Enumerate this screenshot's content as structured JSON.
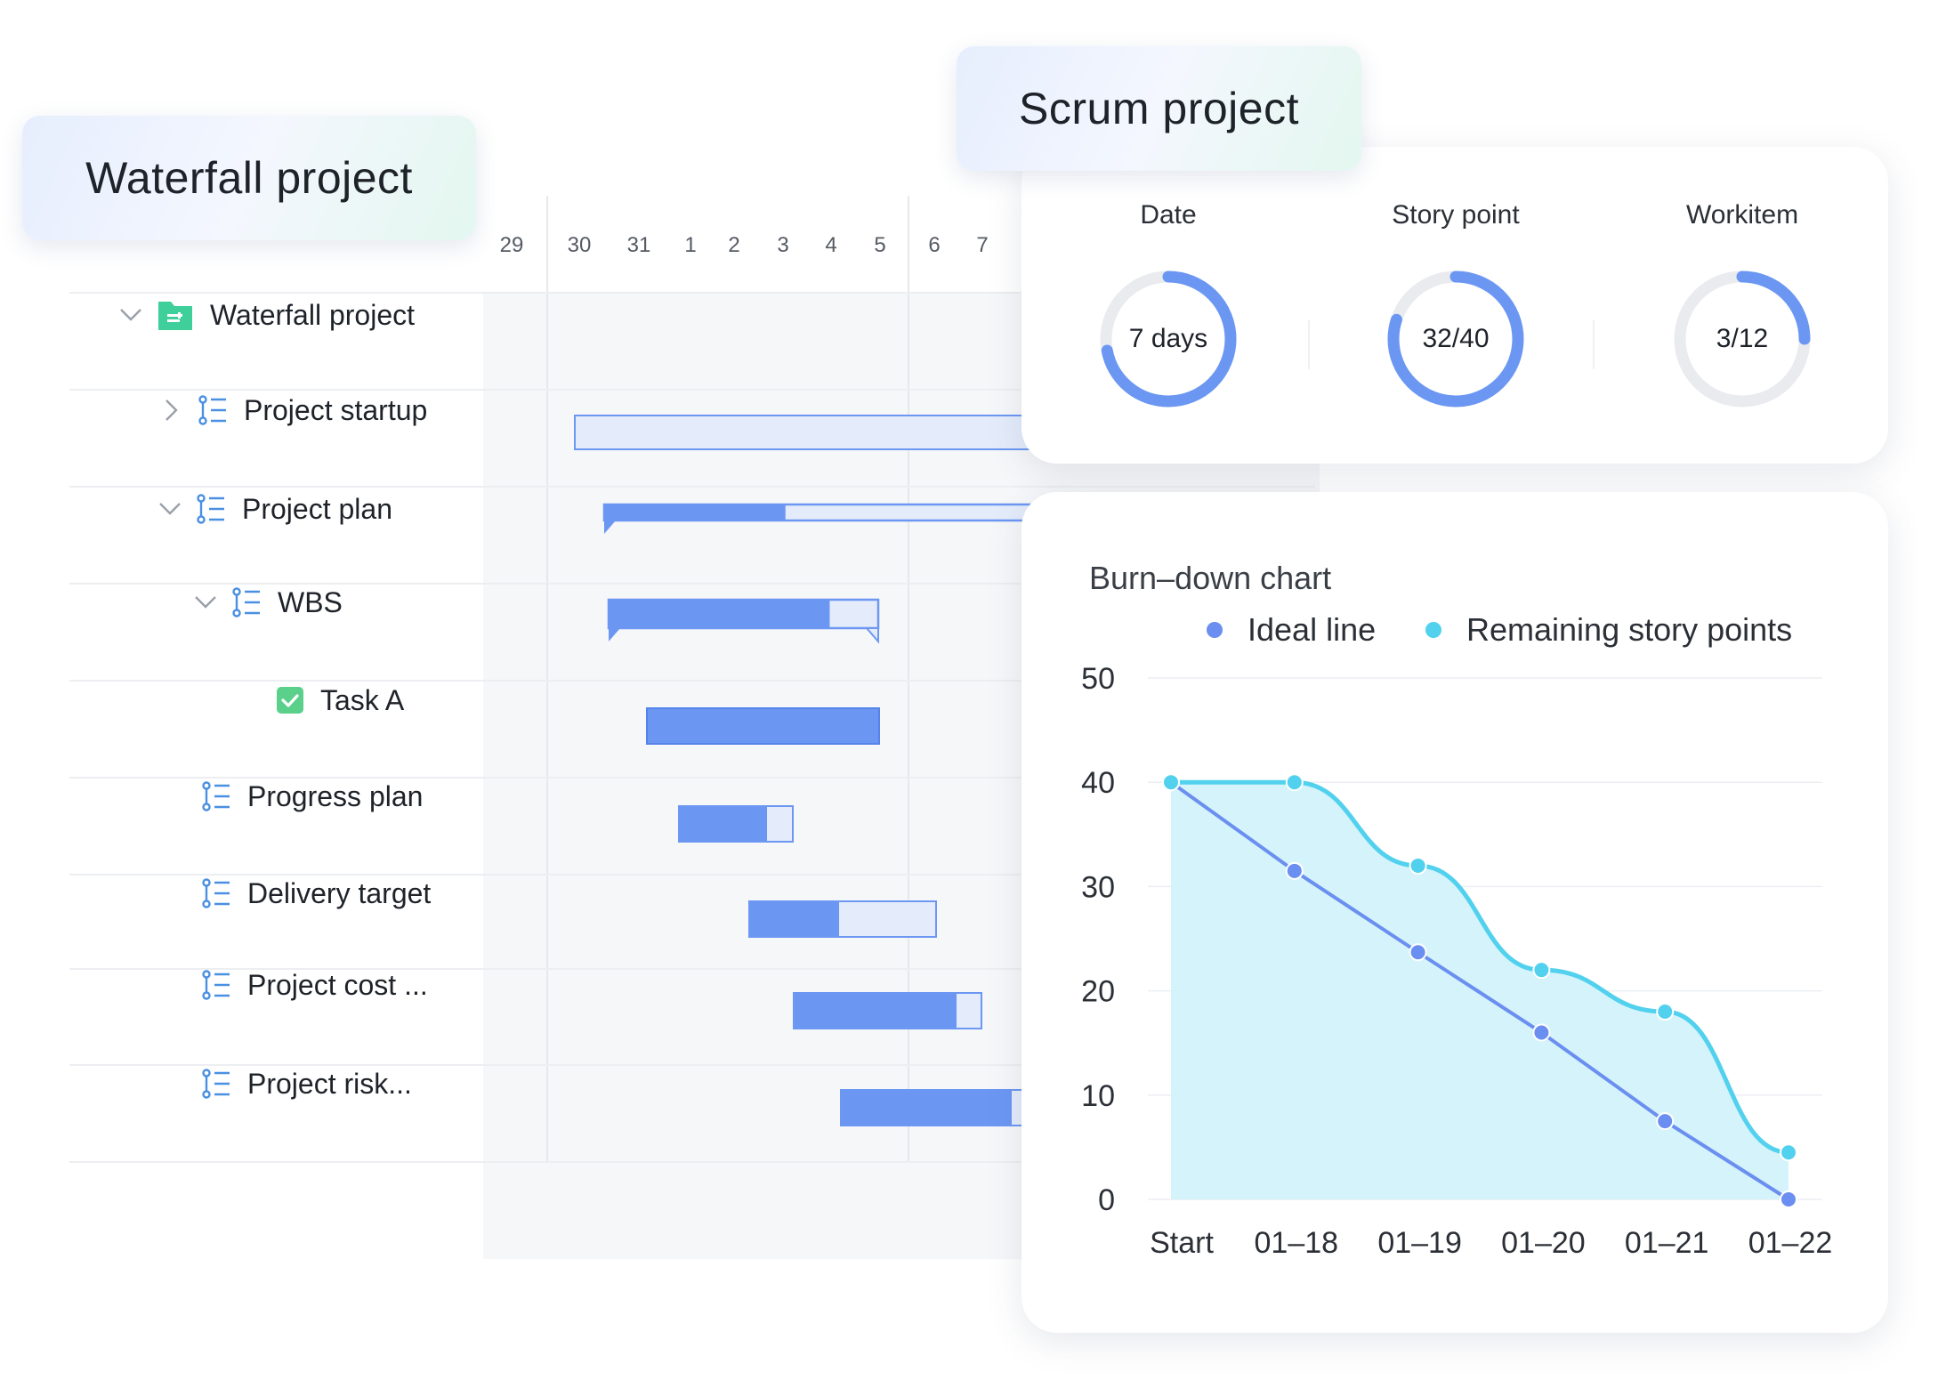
{
  "waterfall": {
    "title": "Waterfall project",
    "dates": [
      "29",
      "30",
      "31",
      "1",
      "2",
      "3",
      "4",
      "5",
      "6",
      "7"
    ],
    "tree": [
      {
        "label": "Waterfall project",
        "chevron": "down",
        "icon": "folder-icon",
        "indent": 0
      },
      {
        "label": "Project startup",
        "chevron": "right",
        "icon": "stage-icon",
        "indent": 1
      },
      {
        "label": "Project plan",
        "chevron": "down",
        "icon": "stage-icon",
        "indent": 1
      },
      {
        "label": "WBS",
        "chevron": "down",
        "icon": "stage-icon",
        "indent": 2
      },
      {
        "label": "Task A",
        "chevron": "",
        "icon": "task-check-icon",
        "indent": 3
      },
      {
        "label": "Progress plan",
        "chevron": "",
        "icon": "stage-icon",
        "indent": 2
      },
      {
        "label": "Delivery target",
        "chevron": "",
        "icon": "stage-icon",
        "indent": 2
      },
      {
        "label": "Project cost ...",
        "chevron": "",
        "icon": "stage-icon",
        "indent": 2
      },
      {
        "label": "Project risk...",
        "chevron": "",
        "icon": "stage-icon",
        "indent": 2
      }
    ],
    "colors": {
      "bar": "#6b97f3",
      "bar_light": "#e4ecfb",
      "folder": "#3ecf9a",
      "task": "#5ad08a",
      "stage_icon": "#4a90e2"
    }
  },
  "scrum": {
    "title": "Scrum project",
    "stats": [
      {
        "title": "Date",
        "value": "7 days",
        "progress": 0.72
      },
      {
        "title": "Story point",
        "value": "32/40",
        "progress": 0.8
      },
      {
        "title": "Workitem",
        "value": "3/12",
        "progress": 0.25
      }
    ],
    "ring_colors": {
      "track": "#e9ebef",
      "fill": "#6b97f3"
    }
  },
  "chart_data": {
    "type": "line",
    "title": "Burn–down chart",
    "categories": [
      "Start",
      "01–18",
      "01–19",
      "01–20",
      "01–21",
      "01–22"
    ],
    "series": [
      {
        "name": "Ideal line",
        "values": [
          40,
          31.5,
          23.7,
          16,
          7.5,
          0
        ],
        "color": "#6b8ff0"
      },
      {
        "name": "Remaining story points",
        "values": [
          40,
          40,
          32,
          22,
          18,
          4.5
        ],
        "color": "#52d1ee"
      }
    ],
    "yticks": [
      "0",
      "10",
      "20",
      "30",
      "40",
      "50"
    ],
    "ylim": [
      0,
      50
    ],
    "grid": true,
    "legend": "top-right",
    "area_fill": "#d2f2fa"
  }
}
